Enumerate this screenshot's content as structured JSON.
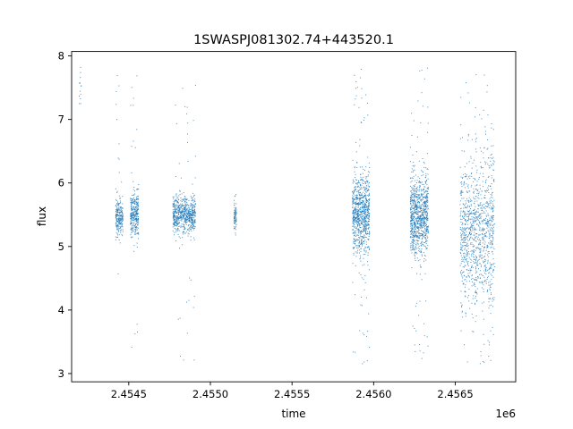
{
  "chart_data": {
    "type": "scatter",
    "title": "1SWASPJ081302.74+443520.1",
    "xlabel": "time",
    "ylabel": "flux",
    "x_offset_label": "1e6",
    "xlim": [
      2454150,
      2456870
    ],
    "ylim": [
      2.87,
      8.07
    ],
    "x_ticks": [
      2454500,
      2455000,
      2455500,
      2456000,
      2456500
    ],
    "x_tick_labels": [
      "2.4545",
      "2.4550",
      "2.4555",
      "2.4560",
      "2.4565"
    ],
    "y_ticks": [
      3,
      4,
      5,
      6,
      7,
      8
    ],
    "y_tick_labels": [
      "3",
      "4",
      "5",
      "6",
      "7",
      "8"
    ],
    "grid": false,
    "point_color": "#1f77b4",
    "clusters": [
      {
        "x_range": [
          2454195,
          2454210
        ],
        "center": 7.5,
        "spread": 0.25,
        "min": 7.25,
        "max": 7.82,
        "n": 14
      },
      {
        "x_range": [
          2454420,
          2454465
        ],
        "center": 5.45,
        "spread": 0.15,
        "min": 4.2,
        "max": 7.8,
        "n": 240
      },
      {
        "x_range": [
          2454510,
          2454560
        ],
        "center": 5.5,
        "spread": 0.17,
        "min": 3.25,
        "max": 7.8,
        "n": 320
      },
      {
        "x_range": [
          2454770,
          2454910
        ],
        "center": 5.5,
        "spread": 0.14,
        "min": 3.2,
        "max": 7.6,
        "n": 700
      },
      {
        "x_range": [
          2455145,
          2455160
        ],
        "center": 5.45,
        "spread": 0.12,
        "min": 5.1,
        "max": 5.9,
        "n": 80
      },
      {
        "x_range": [
          2455870,
          2455975
        ],
        "center": 5.5,
        "spread": 0.3,
        "min": 3.1,
        "max": 7.8,
        "n": 900
      },
      {
        "x_range": [
          2456225,
          2456335
        ],
        "center": 5.5,
        "spread": 0.3,
        "min": 3.1,
        "max": 7.82,
        "n": 950
      },
      {
        "x_range": [
          2456530,
          2456740
        ],
        "center": 5.2,
        "spread": 0.6,
        "min": 3.1,
        "max": 7.85,
        "n": 1100
      }
    ]
  }
}
